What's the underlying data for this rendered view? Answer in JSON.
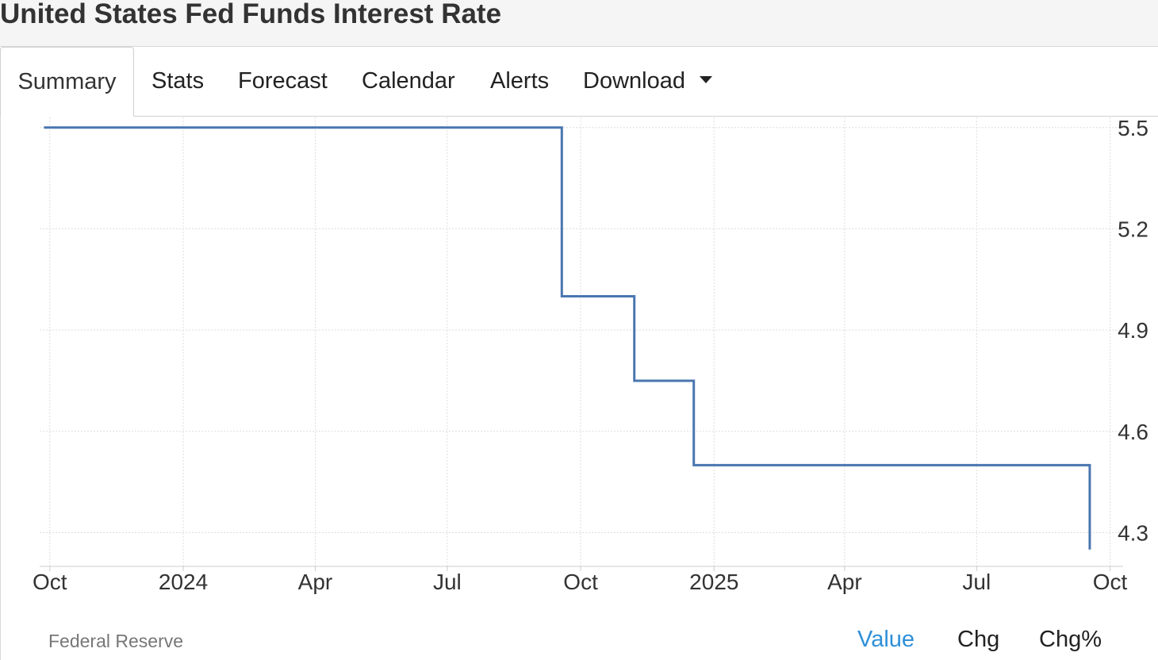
{
  "header": {
    "title": "United States Fed Funds Interest Rate"
  },
  "tabs": [
    {
      "label": "Summary",
      "active": true
    },
    {
      "label": "Stats"
    },
    {
      "label": "Forecast"
    },
    {
      "label": "Calendar"
    },
    {
      "label": "Alerts"
    },
    {
      "label": "Download",
      "dropdown": true
    }
  ],
  "footer": {
    "source": "Federal Reserve",
    "metrics": [
      {
        "label": "Value",
        "active": true
      },
      {
        "label": "Chg"
      },
      {
        "label": "Chg%"
      }
    ]
  },
  "colors": {
    "line": "#4a76b0",
    "accent": "#2e8fd8",
    "grid": "#dddddd"
  },
  "chart_data": {
    "type": "line",
    "step": true,
    "title": "United States Fed Funds Interest Rate",
    "x_ticks": [
      "2023-10-01",
      "2024-01-01",
      "2024-04-01",
      "2024-07-01",
      "2024-10-01",
      "2025-01-01",
      "2025-04-01",
      "2025-07-01",
      "2025-10-01"
    ],
    "x_tick_labels": [
      "Oct",
      "2024",
      "Apr",
      "Jul",
      "Oct",
      "2025",
      "Apr",
      "Jul",
      "Oct"
    ],
    "y_ticks": [
      4.3,
      4.6,
      4.9,
      5.2,
      5.5
    ],
    "y_tick_labels": [
      "4.3",
      "4.6",
      "4.9",
      "5.2",
      "5.5"
    ],
    "ylim": [
      4.2,
      5.53
    ],
    "xlim": [
      "2023-09-24",
      "2025-10-10"
    ],
    "grid": true,
    "y_axis_side": "right",
    "series": [
      {
        "x": [
          "2023-09-27",
          "2024-09-18",
          "2024-11-07",
          "2024-12-18",
          "2025-09-17"
        ],
        "values": [
          5.5,
          5.0,
          4.75,
          4.5,
          4.25
        ]
      }
    ]
  }
}
